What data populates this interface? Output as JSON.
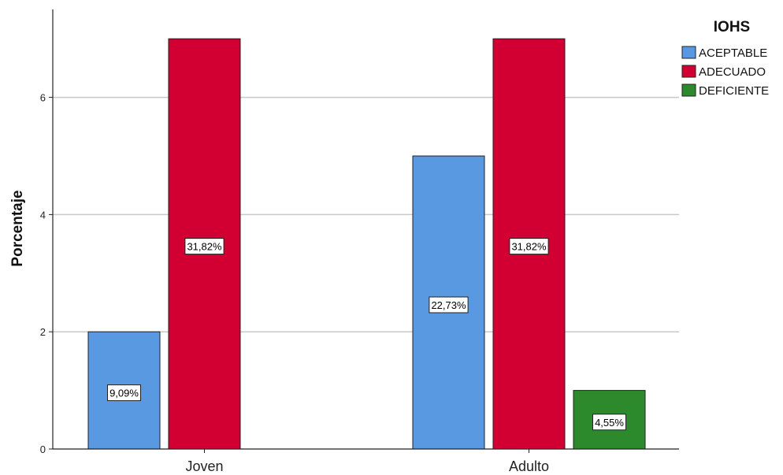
{
  "chart_data": {
    "type": "bar",
    "categories": [
      "Joven",
      "Adulto"
    ],
    "series": [
      {
        "name": "ACEPTABLE",
        "color": "#5899E2",
        "values": [
          2,
          5
        ],
        "labels": [
          "9,09%",
          "22,73%"
        ]
      },
      {
        "name": "ADECUADO",
        "color": "#D20032",
        "values": [
          7,
          7
        ],
        "labels": [
          "31,82%",
          "31,82%"
        ]
      },
      {
        "name": "DEFICIENTE",
        "color": "#2C8A2C",
        "values": [
          0,
          1
        ],
        "labels": [
          "",
          "4,55%"
        ]
      }
    ],
    "ylabel": "Porcentaje",
    "xlabel": "",
    "ylim": [
      0,
      7.5
    ],
    "yticks": [
      "0",
      "2",
      "4",
      "6"
    ],
    "grid": true,
    "legend": {
      "title": "IOHS",
      "placement": "top-right"
    }
  }
}
